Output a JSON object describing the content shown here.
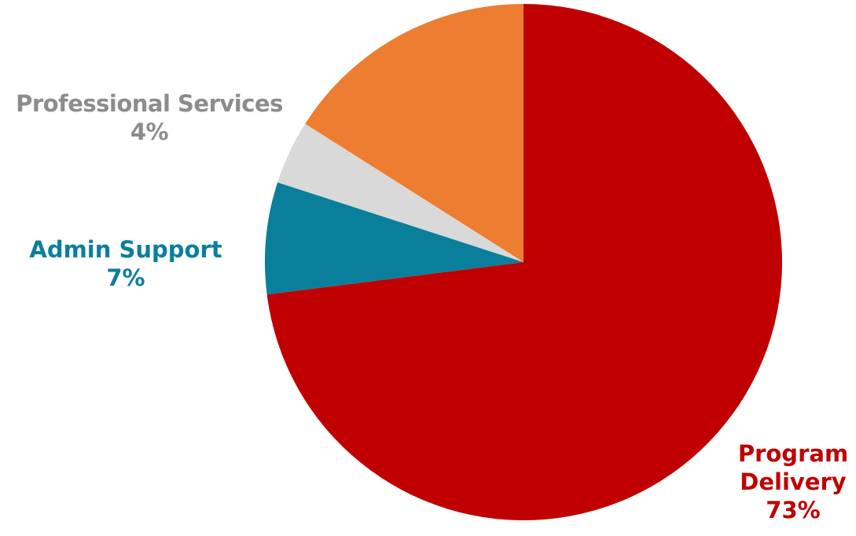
{
  "chart_data": {
    "type": "pie",
    "start_angle_deg": 0,
    "direction": "clockwise",
    "slices": [
      {
        "label": "Program Delivery",
        "label_lines": [
          "Program",
          "Delivery"
        ],
        "percent_label": "73%",
        "value": 73,
        "color": "#C00000"
      },
      {
        "label": "Admin Support",
        "label_lines": [
          "Admin Support"
        ],
        "percent_label": "7%",
        "value": 7,
        "color": "#0A7F9C"
      },
      {
        "label": "Professional Services",
        "label_lines": [
          "Professional Services"
        ],
        "percent_label": "4%",
        "value": 4,
        "color": "#D9D9D9",
        "label_color": "#8C8C8C"
      },
      {
        "label": "",
        "label_lines": [],
        "percent_label": "",
        "value": 16,
        "color": "#ED7D31"
      }
    ]
  }
}
